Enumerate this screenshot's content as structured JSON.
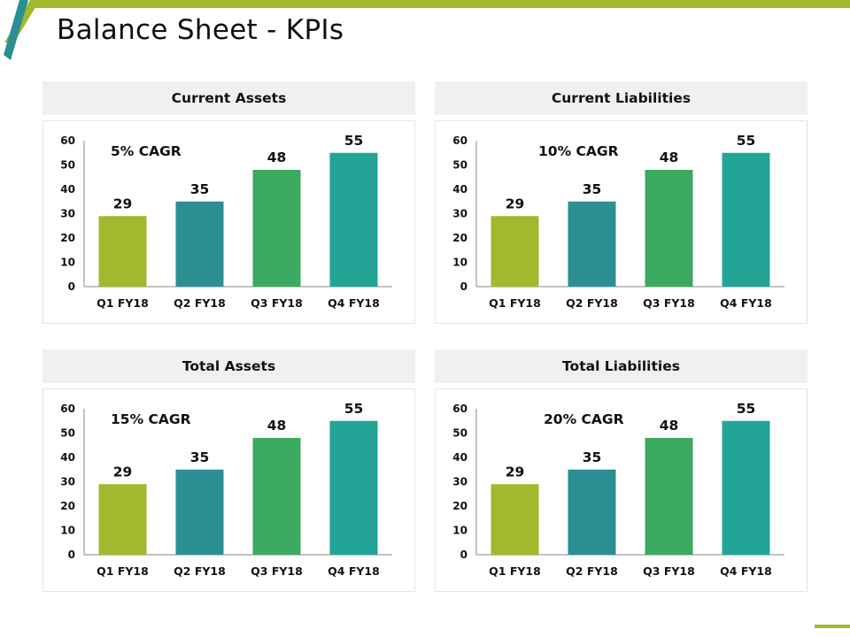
{
  "colors": {
    "accent": "#a2b92d",
    "stripe_teal": "#2a8e92",
    "panel_header_bg": "#f0f0f0",
    "bar_q1": "#a3b82f",
    "bar_q2": "#2b8f94",
    "bar_q3": "#3ba95f",
    "bar_q4": "#22a596"
  },
  "page": {
    "title": "Balance Sheet - KPIs"
  },
  "chart_data": [
    {
      "type": "bar",
      "title": "Current Assets",
      "annotation": "5% CAGR",
      "categories": [
        "Q1 FY18",
        "Q2 FY18",
        "Q3 FY18",
        "Q4 FY18"
      ],
      "values": [
        29,
        35,
        48,
        55
      ],
      "ylim": [
        0,
        60
      ],
      "yticks": [
        0,
        10,
        20,
        30,
        40,
        50,
        60
      ],
      "xlabel": "",
      "ylabel": "",
      "grid": false
    },
    {
      "type": "bar",
      "title": "Current Liabilities",
      "annotation": "10% CAGR",
      "categories": [
        "Q1 FY18",
        "Q2 FY18",
        "Q3 FY18",
        "Q4 FY18"
      ],
      "values": [
        29,
        35,
        48,
        55
      ],
      "ylim": [
        0,
        60
      ],
      "yticks": [
        0,
        10,
        20,
        30,
        40,
        50,
        60
      ],
      "xlabel": "",
      "ylabel": "",
      "grid": false
    },
    {
      "type": "bar",
      "title": "Total Assets",
      "annotation": "15% CAGR",
      "categories": [
        "Q1 FY18",
        "Q2 FY18",
        "Q3 FY18",
        "Q4 FY18"
      ],
      "values": [
        29,
        35,
        48,
        55
      ],
      "ylim": [
        0,
        60
      ],
      "yticks": [
        0,
        10,
        20,
        30,
        40,
        50,
        60
      ],
      "xlabel": "",
      "ylabel": "",
      "grid": false
    },
    {
      "type": "bar",
      "title": "Total Liabilities",
      "annotation": "20% CAGR",
      "categories": [
        "Q1 FY18",
        "Q2 FY18",
        "Q3 FY18",
        "Q4 FY18"
      ],
      "values": [
        29,
        35,
        48,
        55
      ],
      "ylim": [
        0,
        60
      ],
      "yticks": [
        0,
        10,
        20,
        30,
        40,
        50,
        60
      ],
      "xlabel": "",
      "ylabel": "",
      "grid": false
    }
  ]
}
